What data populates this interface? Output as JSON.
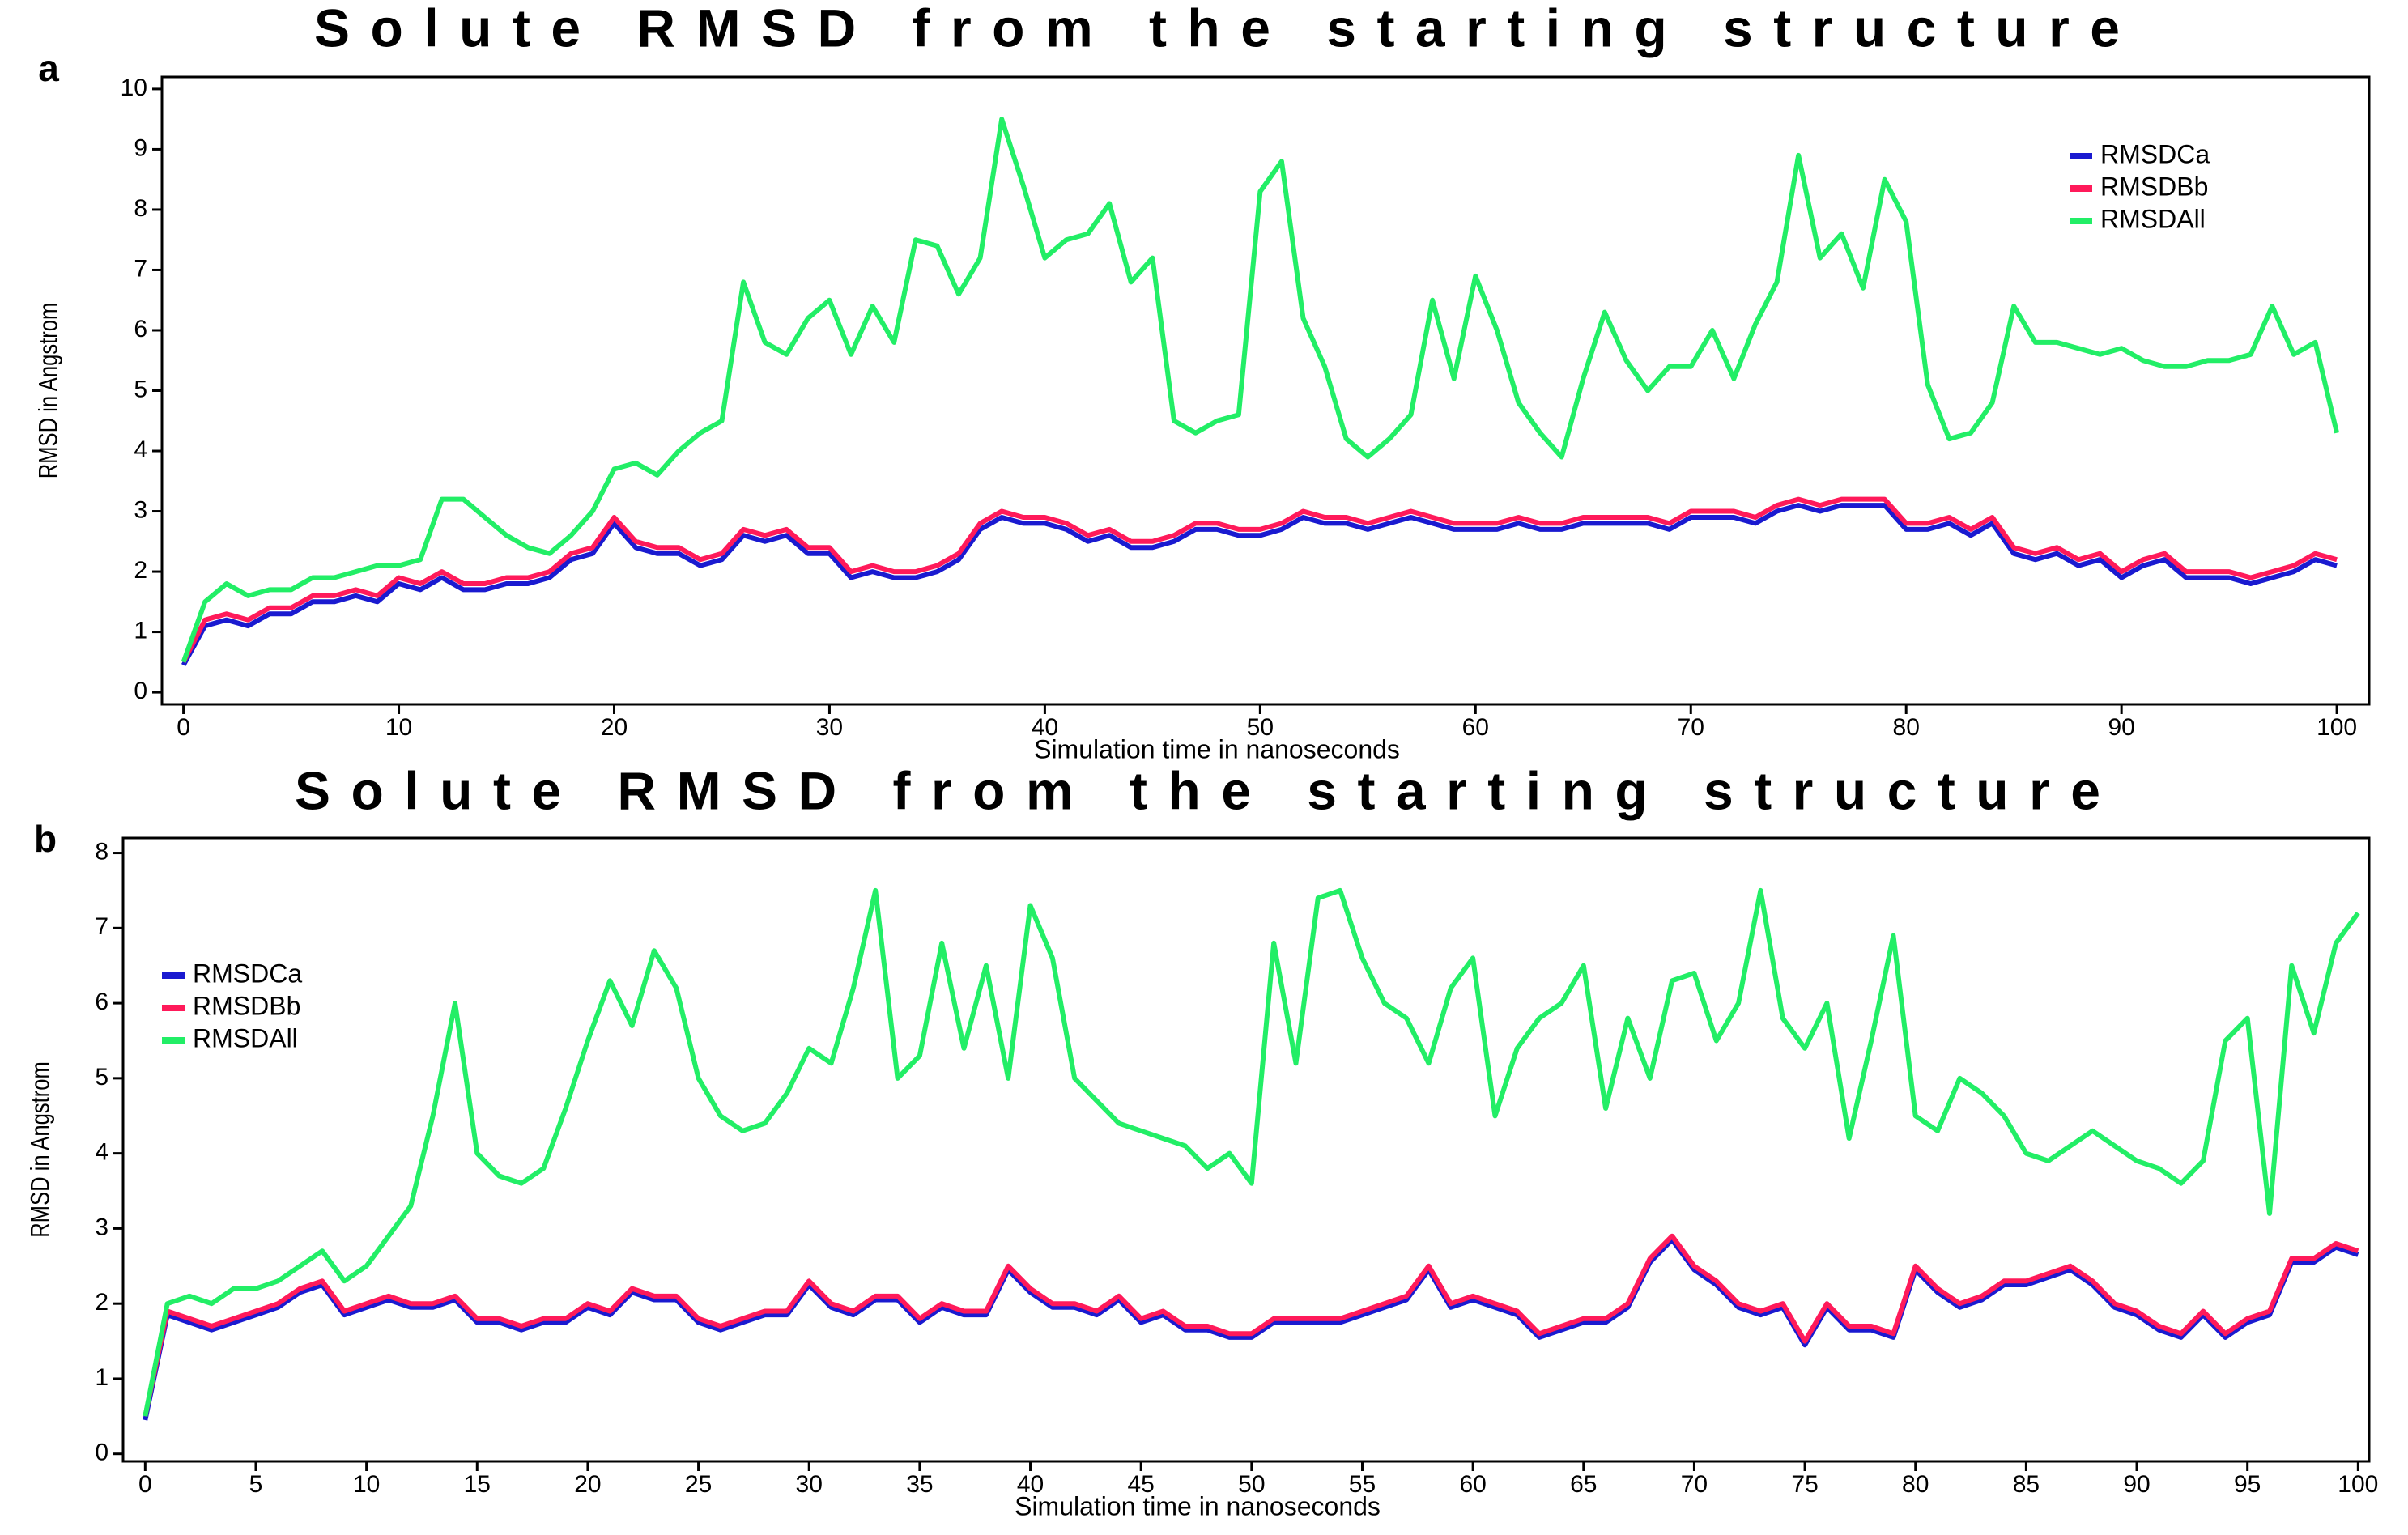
{
  "chart_data": [
    {
      "type": "line",
      "panel": "a",
      "title": "Solute RMSD from the starting structure",
      "x_label": "Simulation time in nanoseconds",
      "y_label": "RMSD in Angstrom",
      "legend": "upper right",
      "xlim": [
        -1,
        101.5
      ],
      "ylim": [
        -0.2,
        10.2
      ],
      "xticks": [
        0,
        10,
        20,
        30,
        40,
        50,
        60,
        70,
        80,
        90,
        100
      ],
      "yticks": [
        0,
        1,
        2,
        3,
        4,
        5,
        6,
        7,
        8,
        9,
        10
      ],
      "x": [
        0,
        1,
        2,
        3,
        4,
        5,
        6,
        7,
        8,
        9,
        10,
        11,
        12,
        13,
        14,
        15,
        16,
        17,
        18,
        19,
        20,
        21,
        22,
        23,
        24,
        25,
        26,
        27,
        28,
        29,
        30,
        31,
        32,
        33,
        34,
        35,
        36,
        37,
        38,
        39,
        40,
        41,
        42,
        43,
        44,
        45,
        46,
        47,
        48,
        49,
        50,
        51,
        52,
        53,
        54,
        55,
        56,
        57,
        58,
        59,
        60,
        61,
        62,
        63,
        64,
        65,
        66,
        67,
        68,
        69,
        70,
        71,
        72,
        73,
        74,
        75,
        76,
        77,
        78,
        79,
        80,
        81,
        82,
        83,
        84,
        85,
        86,
        87,
        88,
        89,
        90,
        91,
        92,
        93,
        94,
        95,
        96,
        97,
        98,
        99,
        100
      ],
      "series": [
        {
          "name": "RMSDCa",
          "color": "#1a1ad0",
          "values": [
            0.45,
            1.1,
            1.2,
            1.1,
            1.3,
            1.3,
            1.5,
            1.5,
            1.6,
            1.5,
            1.8,
            1.7,
            1.9,
            1.7,
            1.7,
            1.8,
            1.8,
            1.9,
            2.2,
            2.3,
            2.8,
            2.4,
            2.3,
            2.3,
            2.1,
            2.2,
            2.6,
            2.5,
            2.6,
            2.3,
            2.3,
            1.9,
            2.0,
            1.9,
            1.9,
            2.0,
            2.2,
            2.7,
            2.9,
            2.8,
            2.8,
            2.7,
            2.5,
            2.6,
            2.4,
            2.4,
            2.5,
            2.7,
            2.7,
            2.6,
            2.6,
            2.7,
            2.9,
            2.8,
            2.8,
            2.7,
            2.8,
            2.9,
            2.8,
            2.7,
            2.7,
            2.7,
            2.8,
            2.7,
            2.7,
            2.8,
            2.8,
            2.8,
            2.8,
            2.7,
            2.9,
            2.9,
            2.9,
            2.8,
            3.0,
            3.1,
            3.0,
            3.1,
            3.1,
            3.1,
            2.7,
            2.7,
            2.8,
            2.6,
            2.8,
            2.3,
            2.2,
            2.3,
            2.1,
            2.2,
            1.9,
            2.1,
            2.2,
            1.9,
            1.9,
            1.9,
            1.8,
            1.9,
            2.0,
            2.2,
            2.1
          ]
        },
        {
          "name": "RMSDBb",
          "color": "#ff1a5a",
          "values": [
            0.5,
            1.2,
            1.3,
            1.2,
            1.4,
            1.4,
            1.6,
            1.6,
            1.7,
            1.6,
            1.9,
            1.8,
            2.0,
            1.8,
            1.8,
            1.9,
            1.9,
            2.0,
            2.3,
            2.4,
            2.9,
            2.5,
            2.4,
            2.4,
            2.2,
            2.3,
            2.7,
            2.6,
            2.7,
            2.4,
            2.4,
            2.0,
            2.1,
            2.0,
            2.0,
            2.1,
            2.3,
            2.8,
            3.0,
            2.9,
            2.9,
            2.8,
            2.6,
            2.7,
            2.5,
            2.5,
            2.6,
            2.8,
            2.8,
            2.7,
            2.7,
            2.8,
            3.0,
            2.9,
            2.9,
            2.8,
            2.9,
            3.0,
            2.9,
            2.8,
            2.8,
            2.8,
            2.9,
            2.8,
            2.8,
            2.9,
            2.9,
            2.9,
            2.9,
            2.8,
            3.0,
            3.0,
            3.0,
            2.9,
            3.1,
            3.2,
            3.1,
            3.2,
            3.2,
            3.2,
            2.8,
            2.8,
            2.9,
            2.7,
            2.9,
            2.4,
            2.3,
            2.4,
            2.2,
            2.3,
            2.0,
            2.2,
            2.3,
            2.0,
            2.0,
            2.0,
            1.9,
            2.0,
            2.1,
            2.3,
            2.2
          ]
        },
        {
          "name": "RMSDAll",
          "color": "#22ee66",
          "values": [
            0.5,
            1.5,
            1.8,
            1.6,
            1.7,
            1.7,
            1.9,
            1.9,
            2.0,
            2.1,
            2.1,
            2.2,
            3.2,
            3.2,
            2.9,
            2.6,
            2.4,
            2.3,
            2.6,
            3.0,
            3.7,
            3.8,
            3.6,
            4.0,
            4.3,
            4.5,
            6.8,
            5.8,
            5.6,
            6.2,
            6.5,
            5.6,
            6.4,
            5.8,
            7.5,
            7.4,
            6.6,
            7.2,
            9.5,
            8.4,
            7.2,
            7.5,
            7.6,
            8.1,
            6.8,
            7.2,
            4.5,
            4.3,
            4.5,
            4.6,
            8.3,
            8.8,
            6.2,
            5.4,
            4.2,
            3.9,
            4.2,
            4.6,
            6.5,
            5.2,
            6.9,
            6.0,
            4.8,
            4.3,
            3.9,
            5.2,
            6.3,
            5.5,
            5.0,
            5.4,
            5.4,
            6.0,
            5.2,
            6.1,
            6.8,
            8.9,
            7.2,
            7.6,
            6.7,
            8.5,
            7.8,
            5.1,
            4.2,
            4.3,
            4.8,
            6.4,
            5.8,
            5.8,
            5.7,
            5.6,
            5.7,
            5.5,
            5.4,
            5.4,
            5.5,
            5.5,
            5.6,
            6.4,
            5.6,
            5.8,
            4.3
          ]
        }
      ]
    },
    {
      "type": "line",
      "panel": "b",
      "title": "Solute RMSD from the starting structure",
      "x_label": "Simulation time in nanoseconds",
      "y_label": "RMSD in Angstrom",
      "legend": "upper left",
      "xlim": [
        -1,
        100.5
      ],
      "ylim": [
        -0.1,
        8.2
      ],
      "xticks": [
        0,
        5,
        10,
        15,
        20,
        25,
        30,
        35,
        40,
        45,
        50,
        55,
        60,
        65,
        70,
        75,
        80,
        85,
        90,
        95,
        100
      ],
      "yticks": [
        0,
        1,
        2,
        3,
        4,
        5,
        6,
        7,
        8
      ],
      "x": [
        0,
        1,
        2,
        3,
        4,
        5,
        6,
        7,
        8,
        9,
        10,
        11,
        12,
        13,
        14,
        15,
        16,
        17,
        18,
        19,
        20,
        21,
        22,
        23,
        24,
        25,
        26,
        27,
        28,
        29,
        30,
        31,
        32,
        33,
        34,
        35,
        36,
        37,
        38,
        39,
        40,
        41,
        42,
        43,
        44,
        45,
        46,
        47,
        48,
        49,
        50,
        51,
        52,
        53,
        54,
        55,
        56,
        57,
        58,
        59,
        60,
        61,
        62,
        63,
        64,
        65,
        66,
        67,
        68,
        69,
        70,
        71,
        72,
        73,
        74,
        75,
        76,
        77,
        78,
        79,
        80,
        81,
        82,
        83,
        84,
        85,
        86,
        87,
        88,
        89,
        90,
        91,
        92,
        93,
        94,
        95,
        96,
        97,
        98,
        99,
        100
      ],
      "series": [
        {
          "name": "RMSDCa",
          "color": "#1a1ad0",
          "values": [
            0.45,
            1.85,
            1.75,
            1.65,
            1.75,
            1.85,
            1.95,
            2.15,
            2.25,
            1.85,
            1.95,
            2.05,
            1.95,
            1.95,
            2.05,
            1.75,
            1.75,
            1.65,
            1.75,
            1.75,
            1.95,
            1.85,
            2.15,
            2.05,
            2.05,
            1.75,
            1.65,
            1.75,
            1.85,
            1.85,
            2.25,
            1.95,
            1.85,
            2.05,
            2.05,
            1.75,
            1.95,
            1.85,
            1.85,
            2.45,
            2.15,
            1.95,
            1.95,
            1.85,
            2.05,
            1.75,
            1.85,
            1.65,
            1.65,
            1.55,
            1.55,
            1.75,
            1.75,
            1.75,
            1.75,
            1.85,
            1.95,
            2.05,
            2.45,
            1.95,
            2.05,
            1.95,
            1.85,
            1.55,
            1.65,
            1.75,
            1.75,
            1.95,
            2.55,
            2.85,
            2.45,
            2.25,
            1.95,
            1.85,
            1.95,
            1.45,
            1.95,
            1.65,
            1.65,
            1.55,
            2.45,
            2.15,
            1.95,
            2.05,
            2.25,
            2.25,
            2.35,
            2.45,
            2.25,
            1.95,
            1.85,
            1.65,
            1.55,
            1.85,
            1.55,
            1.75,
            1.85,
            2.55,
            2.55,
            2.75,
            2.65
          ]
        },
        {
          "name": "RMSDBb",
          "color": "#ff1a5a",
          "values": [
            0.5,
            1.9,
            1.8,
            1.7,
            1.8,
            1.9,
            2.0,
            2.2,
            2.3,
            1.9,
            2.0,
            2.1,
            2.0,
            2.0,
            2.1,
            1.8,
            1.8,
            1.7,
            1.8,
            1.8,
            2.0,
            1.9,
            2.2,
            2.1,
            2.1,
            1.8,
            1.7,
            1.8,
            1.9,
            1.9,
            2.3,
            2.0,
            1.9,
            2.1,
            2.1,
            1.8,
            2.0,
            1.9,
            1.9,
            2.5,
            2.2,
            2.0,
            2.0,
            1.9,
            2.1,
            1.8,
            1.9,
            1.7,
            1.7,
            1.6,
            1.6,
            1.8,
            1.8,
            1.8,
            1.8,
            1.9,
            2.0,
            2.1,
            2.5,
            2.0,
            2.1,
            2.0,
            1.9,
            1.6,
            1.7,
            1.8,
            1.8,
            2.0,
            2.6,
            2.9,
            2.5,
            2.3,
            2.0,
            1.9,
            2.0,
            1.5,
            2.0,
            1.7,
            1.7,
            1.6,
            2.5,
            2.2,
            2.0,
            2.1,
            2.3,
            2.3,
            2.4,
            2.5,
            2.3,
            2.0,
            1.9,
            1.7,
            1.6,
            1.9,
            1.6,
            1.8,
            1.9,
            2.6,
            2.6,
            2.8,
            2.7
          ]
        },
        {
          "name": "RMSDAll",
          "color": "#22ee66",
          "values": [
            0.5,
            2.0,
            2.1,
            2.0,
            2.2,
            2.2,
            2.3,
            2.5,
            2.7,
            2.3,
            2.5,
            2.9,
            3.3,
            4.5,
            6.0,
            4.0,
            3.7,
            3.6,
            3.8,
            4.6,
            5.5,
            6.3,
            5.7,
            6.7,
            6.2,
            5.0,
            4.5,
            4.3,
            4.4,
            4.8,
            5.4,
            5.2,
            6.2,
            7.5,
            5.0,
            5.3,
            6.8,
            5.4,
            6.5,
            5.0,
            7.3,
            6.6,
            5.0,
            4.7,
            4.4,
            4.3,
            4.2,
            4.1,
            3.8,
            4.0,
            3.6,
            6.8,
            5.2,
            7.4,
            7.5,
            6.6,
            6.0,
            5.8,
            5.2,
            6.2,
            6.6,
            4.5,
            5.4,
            5.8,
            6.0,
            6.5,
            4.6,
            5.8,
            5.0,
            6.3,
            6.4,
            5.5,
            6.0,
            7.5,
            5.8,
            5.4,
            6.0,
            4.2,
            5.5,
            6.9,
            4.5,
            4.3,
            5.0,
            4.8,
            4.5,
            4.0,
            3.9,
            4.1,
            4.3,
            4.1,
            3.9,
            3.8,
            3.6,
            3.9,
            5.5,
            5.8,
            3.2,
            6.5,
            5.6,
            6.8,
            7.2
          ]
        }
      ]
    }
  ]
}
